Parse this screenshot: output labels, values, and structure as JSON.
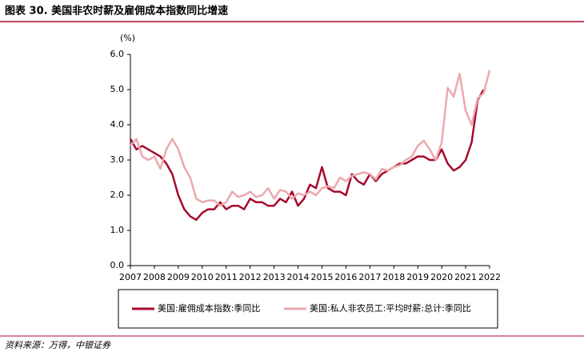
{
  "chart_data": {
    "type": "line",
    "title": "图表 30. 美国非农时薪及雇佣成本指数同比增速",
    "y_unit": "(%)",
    "source": "资料来源：万得，中银证券",
    "x": [
      2007,
      2007.25,
      2007.5,
      2007.75,
      2008,
      2008.25,
      2008.5,
      2008.75,
      2009,
      2009.25,
      2009.5,
      2009.75,
      2010,
      2010.25,
      2010.5,
      2010.75,
      2011,
      2011.25,
      2011.5,
      2011.75,
      2012,
      2012.25,
      2012.5,
      2012.75,
      2013,
      2013.25,
      2013.5,
      2013.75,
      2014,
      2014.25,
      2014.5,
      2014.75,
      2015,
      2015.25,
      2015.5,
      2015.75,
      2016,
      2016.25,
      2016.5,
      2016.75,
      2017,
      2017.25,
      2017.5,
      2017.75,
      2018,
      2018.25,
      2018.5,
      2018.75,
      2019,
      2019.25,
      2019.5,
      2019.75,
      2020,
      2020.25,
      2020.5,
      2020.75,
      2021,
      2021.25,
      2021.5,
      2021.75,
      2022
    ],
    "series": [
      {
        "name": "美国:雇佣成本指数:季同比",
        "color": "#a50a2d",
        "values": [
          3.6,
          3.3,
          3.4,
          3.3,
          3.2,
          3.1,
          2.9,
          2.6,
          2.0,
          1.6,
          1.4,
          1.3,
          1.5,
          1.6,
          1.6,
          1.8,
          1.6,
          1.7,
          1.7,
          1.6,
          1.9,
          1.8,
          1.8,
          1.7,
          1.7,
          1.9,
          1.8,
          2.1,
          1.7,
          1.9,
          2.3,
          2.2,
          2.8,
          2.2,
          2.1,
          2.1,
          2.0,
          2.6,
          2.4,
          2.3,
          2.6,
          2.4,
          2.6,
          2.7,
          2.8,
          2.9,
          2.9,
          3.0,
          3.1,
          3.1,
          3.0,
          3.0,
          3.3,
          2.9,
          2.7,
          2.8,
          3.0,
          3.5,
          4.7,
          5.0,
          null
        ]
      },
      {
        "name": "美国:私人非农员工:平均时薪:总计:季同比",
        "color": "#eba9ae",
        "values": [
          3.4,
          3.6,
          3.1,
          3.0,
          3.1,
          2.75,
          3.3,
          3.6,
          3.3,
          2.8,
          2.5,
          1.9,
          1.8,
          1.85,
          1.85,
          1.7,
          1.8,
          2.1,
          1.95,
          2.0,
          2.1,
          1.95,
          2.0,
          2.2,
          1.9,
          2.15,
          2.1,
          1.9,
          2.05,
          2.0,
          2.1,
          2.0,
          2.2,
          2.25,
          2.2,
          2.5,
          2.4,
          2.55,
          2.6,
          2.65,
          2.6,
          2.45,
          2.75,
          2.7,
          2.8,
          2.85,
          3.0,
          3.1,
          3.4,
          3.55,
          3.3,
          3.0,
          3.5,
          5.05,
          4.8,
          5.45,
          4.4,
          4.0,
          4.75,
          4.9,
          5.55
        ]
      }
    ],
    "xlim": [
      2007,
      2022
    ],
    "xticks": [
      2007,
      2008,
      2009,
      2010,
      2011,
      2012,
      2013,
      2014,
      2015,
      2016,
      2017,
      2018,
      2019,
      2020,
      2021,
      2022
    ],
    "ylim": [
      0,
      6
    ],
    "yticks": [
      {
        "value": 0,
        "label": "0.0"
      },
      {
        "value": 1,
        "label": "1.0"
      },
      {
        "value": 2,
        "label": "2.0"
      },
      {
        "value": 3,
        "label": "3.0"
      },
      {
        "value": 4,
        "label": "4.0"
      },
      {
        "value": 5,
        "label": "5.0"
      },
      {
        "value": 6,
        "label": "6.0"
      }
    ]
  }
}
